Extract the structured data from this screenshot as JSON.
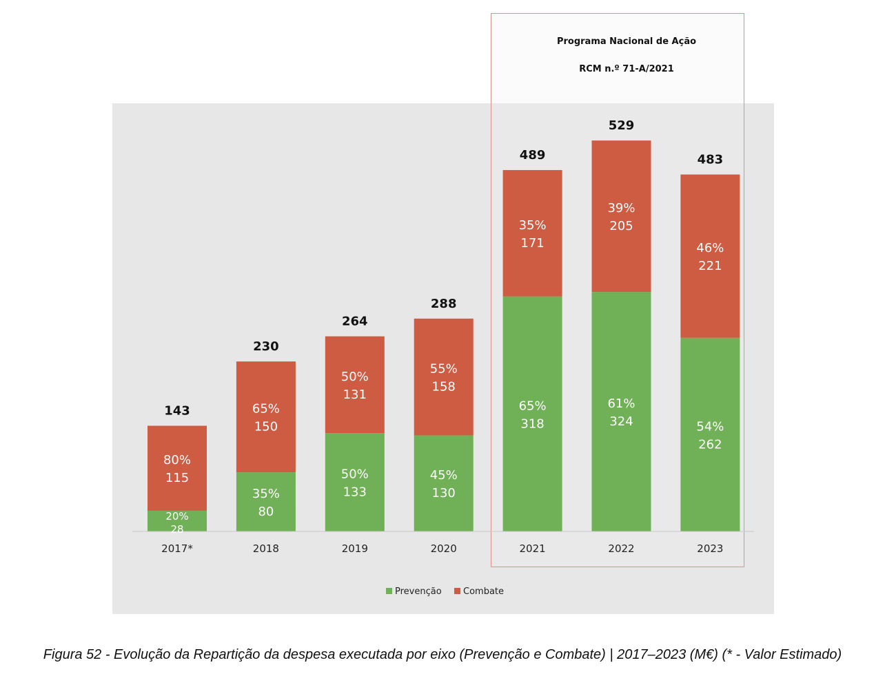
{
  "chart_data": {
    "type": "bar",
    "stacked": true,
    "categories": [
      "2017*",
      "2018",
      "2019",
      "2020",
      "2021",
      "2022",
      "2023"
    ],
    "totals": [
      143,
      230,
      264,
      288,
      489,
      529,
      483
    ],
    "series": [
      {
        "name": "Prevenção",
        "color": "#70b057",
        "values": [
          28,
          80,
          133,
          130,
          318,
          324,
          262
        ],
        "labels": [
          "20%",
          "35%",
          "50%",
          "45%",
          "65%",
          "61%",
          "54%"
        ]
      },
      {
        "name": "Combate",
        "color": "#cd5c43",
        "values": [
          115,
          150,
          131,
          158,
          171,
          205,
          221
        ],
        "labels": [
          "80%",
          "65%",
          "50%",
          "55%",
          "35%",
          "39%",
          "46%"
        ]
      }
    ],
    "ylim": [
      0,
      580
    ],
    "grid": false,
    "legend": "bottom",
    "annotation": {
      "line1": "Programa Nacional de Ação",
      "line2": "RCM n.º 71-A/2021"
    }
  },
  "caption": "Figura 52 - Evolução da Repartição da despesa executada por eixo (Prevenção e Combate) | 2017–2023 (M€) (* - Valor Estimado)"
}
